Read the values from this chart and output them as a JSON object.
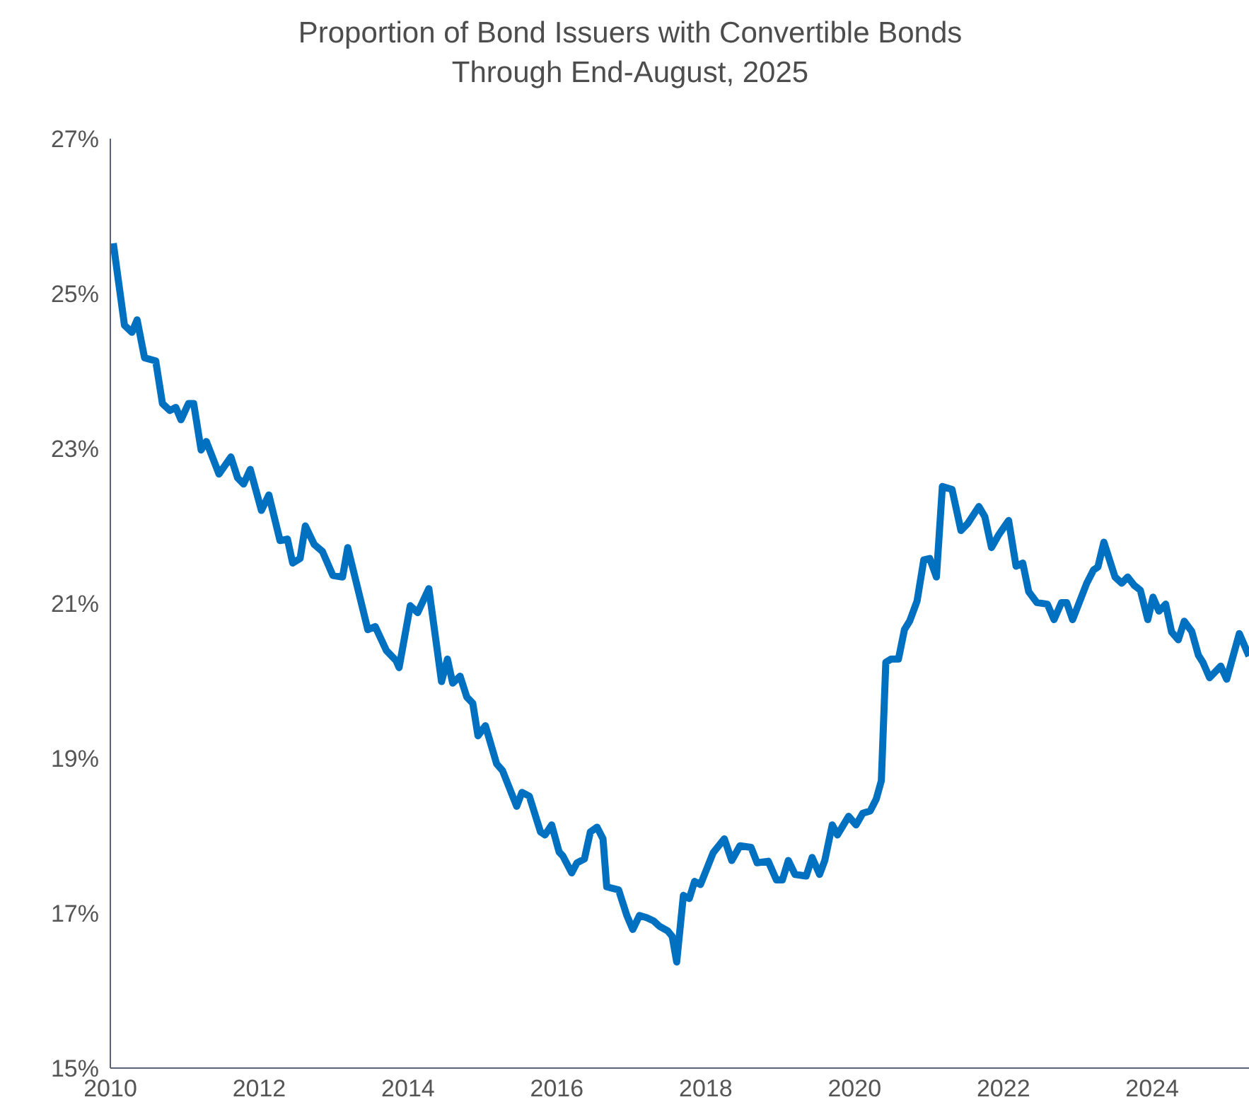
{
  "chart_data": {
    "type": "line",
    "title": "Proportion of Bond Issuers with Convertible Bonds\nThrough End-August, 2025",
    "color": "#0070c0",
    "x": [
      2010.04,
      2010.19,
      2010.29,
      2010.36,
      2010.46,
      2010.61,
      2010.7,
      2010.8,
      2010.88,
      2010.95,
      2011.05,
      2011.12,
      2011.22,
      2011.29,
      2011.46,
      2011.62,
      2011.71,
      2011.79,
      2011.88,
      2012.03,
      2012.13,
      2012.28,
      2012.38,
      2012.45,
      2012.55,
      2012.62,
      2012.74,
      2012.85,
      2012.99,
      2013.12,
      2013.19,
      2013.46,
      2013.56,
      2013.71,
      2013.84,
      2013.88,
      2014.03,
      2014.13,
      2014.28,
      2014.45,
      2014.53,
      2014.6,
      2014.7,
      2014.79,
      2014.87,
      2014.94,
      2015.04,
      2015.19,
      2015.27,
      2015.46,
      2015.53,
      2015.63,
      2015.78,
      2015.84,
      2015.93,
      2016.03,
      2016.08,
      2016.2,
      2016.27,
      2016.37,
      2016.45,
      2016.54,
      2016.62,
      2016.67,
      2016.83,
      2016.94,
      2017.02,
      2017.11,
      2017.21,
      2017.3,
      2017.38,
      2017.49,
      2017.55,
      2017.61,
      2017.7,
      2017.78,
      2017.85,
      2017.93,
      2018.1,
      2018.25,
      2018.35,
      2018.46,
      2018.61,
      2018.69,
      2018.84,
      2018.95,
      2019.03,
      2019.11,
      2019.2,
      2019.35,
      2019.43,
      2019.53,
      2019.6,
      2019.7,
      2019.77,
      2019.92,
      2020.02,
      2020.11,
      2020.21,
      2020.29,
      2020.36,
      2020.42,
      2020.49,
      2020.59,
      2020.67,
      2020.74,
      2020.84,
      2020.93,
      2021.01,
      2021.1,
      2021.18,
      2021.31,
      2021.43,
      2021.52,
      2021.67,
      2021.75,
      2021.84,
      2021.94,
      2022.07,
      2022.17,
      2022.26,
      2022.34,
      2022.45,
      2022.59,
      2022.68,
      2022.78,
      2022.85,
      2022.93,
      2023.12,
      2023.21,
      2023.27,
      2023.35,
      2023.5,
      2023.59,
      2023.67,
      2023.76,
      2023.84,
      2023.94,
      2024.01,
      2024.09,
      2024.18,
      2024.26,
      2024.35,
      2024.43,
      2024.53,
      2024.62,
      2024.68,
      2024.77,
      2024.92,
      2025.0,
      2025.17,
      2025.3
    ],
    "values": [
      25.65,
      24.59,
      24.5,
      24.66,
      24.17,
      24.13,
      23.58,
      23.49,
      23.53,
      23.37,
      23.58,
      23.58,
      22.98,
      23.09,
      22.67,
      22.89,
      22.62,
      22.54,
      22.73,
      22.2,
      22.4,
      21.81,
      21.83,
      21.52,
      21.58,
      22.0,
      21.76,
      21.67,
      21.36,
      21.34,
      21.72,
      20.66,
      20.7,
      20.39,
      20.26,
      20.17,
      20.97,
      20.88,
      21.19,
      19.99,
      20.28,
      19.97,
      20.06,
      19.79,
      19.71,
      19.29,
      19.42,
      18.93,
      18.84,
      18.38,
      18.56,
      18.51,
      18.05,
      18.01,
      18.14,
      17.79,
      17.74,
      17.52,
      17.65,
      17.7,
      18.05,
      18.11,
      17.96,
      17.34,
      17.3,
      16.97,
      16.79,
      16.97,
      16.94,
      16.9,
      16.83,
      16.77,
      16.7,
      16.37,
      17.23,
      17.19,
      17.41,
      17.37,
      17.78,
      17.96,
      17.68,
      17.87,
      17.85,
      17.65,
      17.67,
      17.43,
      17.43,
      17.68,
      17.5,
      17.48,
      17.72,
      17.5,
      17.68,
      18.14,
      18.01,
      18.25,
      18.14,
      18.29,
      18.32,
      18.47,
      18.71,
      20.24,
      20.28,
      20.28,
      20.66,
      20.77,
      21.03,
      21.56,
      21.58,
      21.34,
      22.51,
      22.47,
      21.94,
      22.03,
      22.25,
      22.12,
      21.72,
      21.89,
      22.07,
      21.48,
      21.52,
      21.15,
      21.01,
      20.99,
      20.79,
      21.01,
      21.01,
      20.79,
      21.26,
      21.43,
      21.47,
      21.79,
      21.34,
      21.26,
      21.34,
      21.23,
      21.17,
      20.79,
      21.08,
      20.9,
      20.99,
      20.63,
      20.53,
      20.77,
      20.64,
      20.33,
      20.24,
      20.04,
      20.19,
      20.02,
      20.61,
      20.32
    ],
    "xlim": [
      2010,
      2025.3
    ],
    "xticks": [
      2010,
      2012,
      2014,
      2016,
      2018,
      2020,
      2022,
      2024
    ],
    "ylim": [
      15,
      27
    ],
    "yticks": [
      {
        "value": 15,
        "label": "15%"
      },
      {
        "value": 17,
        "label": "17%"
      },
      {
        "value": 19,
        "label": "19%"
      },
      {
        "value": 21,
        "label": "21%"
      },
      {
        "value": 23,
        "label": "23%"
      },
      {
        "value": 25,
        "label": "25%"
      },
      {
        "value": 27,
        "label": "27%"
      }
    ]
  }
}
